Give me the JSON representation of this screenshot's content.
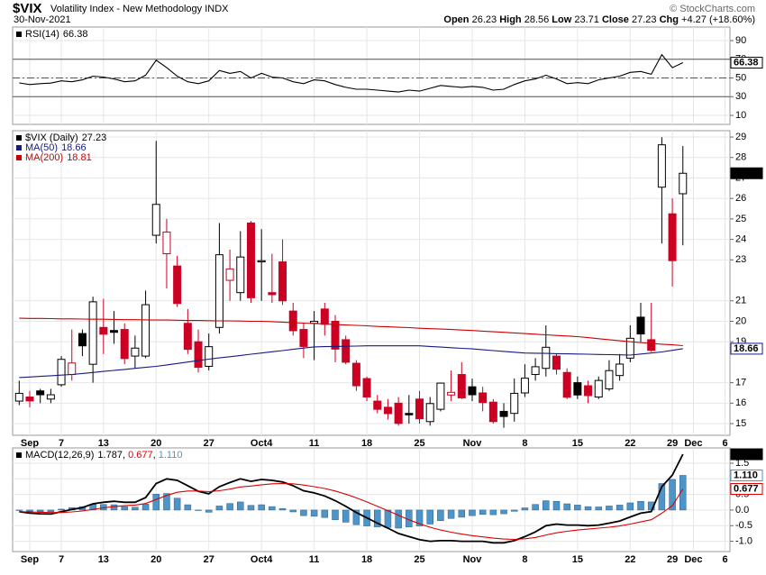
{
  "header": {
    "symbol": "$VIX",
    "name": "Volatility Index - New Methodology INDX",
    "date": "30-Nov-2021",
    "source": "© StockCharts.com",
    "quote_labels": [
      "Open",
      "High",
      "Low",
      "Close",
      "Chg"
    ],
    "change": "+4.27",
    "change_pct": "(+18.60%)"
  },
  "chart_data": [
    {
      "type": "line",
      "grid": true,
      "ylim": [
        0.4,
        104.5
      ],
      "yticks": [
        90,
        70,
        50,
        30,
        10
      ],
      "reference_lines": [
        {
          "value": 70,
          "style": "solid"
        },
        {
          "value": 50,
          "style": "dashdot"
        },
        {
          "value": 30,
          "style": "solid"
        }
      ],
      "legend": "stacked",
      "series": [
        {
          "name": "RSI(14)",
          "color": "#000000",
          "box": "outline",
          "values": [
            44.7,
            43,
            44,
            44.5,
            47,
            46,
            48,
            52,
            51,
            49,
            46,
            47,
            53,
            69,
            61,
            52,
            46,
            44,
            47,
            58,
            55,
            57,
            50,
            55,
            51,
            50,
            46,
            44,
            48,
            47,
            43,
            40,
            38,
            38,
            37,
            36,
            35,
            37,
            36,
            39,
            42,
            41,
            40,
            41,
            40,
            37,
            38,
            43,
            47,
            49,
            53,
            49,
            44,
            45,
            44,
            48,
            50,
            52,
            56,
            57,
            54,
            75,
            61,
            66.38,
            null,
            null,
            null,
            null
          ]
        }
      ]
    },
    {
      "type": "candlestick",
      "grid": true,
      "ylim": [
        14.43,
        29.31
      ],
      "yticks": [
        29,
        28,
        27,
        26,
        25,
        24,
        23,
        21,
        20,
        19,
        17,
        16,
        15
      ],
      "legend": "stacked",
      "categories": [
        null,
        "Sep",
        null,
        null,
        "7",
        null,
        null,
        null,
        "13",
        null,
        null,
        null,
        null,
        "20",
        null,
        null,
        null,
        null,
        "27",
        null,
        null,
        null,
        null,
        "Oct4",
        null,
        null,
        null,
        null,
        "11",
        null,
        null,
        null,
        null,
        "18",
        null,
        null,
        null,
        null,
        "25",
        null,
        null,
        null,
        null,
        "Nov",
        null,
        null,
        null,
        null,
        "8",
        null,
        null,
        null,
        null,
        "15",
        null,
        null,
        null,
        null,
        "22",
        null,
        null,
        null,
        "29",
        null,
        "Dec",
        null,
        null,
        "6"
      ],
      "series": [
        {
          "name": "$VIX (Daily)",
          "type": "candlestick",
          "color": "#000000",
          "up_color": "#000000",
          "down_color": "#cc0022",
          "box": "filled",
          "open": [
            16.1,
            16.3,
            16.6,
            16.2,
            16.9,
            17.4,
            19.4,
            17.9,
            19.7,
            19.55,
            19.6,
            18.3,
            18.3,
            24.2,
            23.3,
            22.7,
            19.9,
            19.0,
            17.8,
            19.7,
            22.0,
            21.4,
            24.8,
            22.9,
            21.4,
            22.9,
            20.5,
            19.6,
            19.9,
            20.6,
            20.0,
            19.1,
            17.95,
            17.2,
            16.1,
            15.8,
            16.0,
            15.5,
            16.2,
            15.1,
            15.7,
            16.4,
            17.4,
            16.8,
            16.5,
            16.05,
            15.6,
            15.5,
            16.5,
            17.4,
            17.7,
            18.3,
            17.5,
            17.0,
            16.85,
            16.3,
            16.7,
            17.35,
            18.2,
            20.2,
            19.1,
            26.55,
            25.25,
            26.23,
            null,
            null,
            null,
            null
          ],
          "high": [
            17.1,
            16.6,
            16.7,
            16.7,
            18.3,
            19.6,
            19.6,
            21.2,
            21.1,
            20.5,
            19.9,
            19.3,
            21.5,
            28.81,
            25.0,
            23.2,
            20.6,
            19.6,
            19.4,
            24.8,
            23.5,
            24.4,
            24.9,
            24.5,
            23.3,
            24.0,
            20.9,
            19.9,
            20.5,
            20.9,
            20.3,
            19.3,
            18.1,
            17.3,
            16.4,
            16.2,
            16.3,
            16.4,
            16.6,
            16.3,
            17.0,
            17.6,
            18.0,
            17.2,
            16.8,
            16.2,
            16.0,
            17.2,
            17.9,
            18.2,
            19.8,
            18.4,
            17.7,
            17.3,
            17.1,
            17.3,
            18.1,
            18.4,
            19.8,
            20.9,
            20.9,
            28.99,
            26.0,
            28.56,
            null,
            null,
            null,
            null
          ],
          "low": [
            15.9,
            15.8,
            16.0,
            16.0,
            16.8,
            17.1,
            18.3,
            17.0,
            18.4,
            18.9,
            17.9,
            17.7,
            18.2,
            23.8,
            21.6,
            20.7,
            18.4,
            17.5,
            17.6,
            19.4,
            21.0,
            21.0,
            20.9,
            21.0,
            20.9,
            20.8,
            19.3,
            18.2,
            18.1,
            19.3,
            18.0,
            17.9,
            16.6,
            16.1,
            15.5,
            15.2,
            14.9,
            15.0,
            15.0,
            14.9,
            15.6,
            16.1,
            16.2,
            16.1,
            15.6,
            15.0,
            14.8,
            15.1,
            16.3,
            17.1,
            17.3,
            17.4,
            16.2,
            16.2,
            16.0,
            16.2,
            16.6,
            17.1,
            18.0,
            19.0,
            18.5,
            23.8,
            21.7,
            23.71,
            null,
            null,
            null,
            null
          ],
          "close": [
            16.48,
            16.11,
            16.41,
            16.41,
            18.14,
            17.96,
            18.8,
            20.95,
            19.37,
            19.46,
            18.18,
            18.69,
            20.81,
            25.71,
            24.36,
            20.87,
            18.63,
            17.75,
            18.76,
            23.25,
            22.56,
            23.14,
            21.15,
            22.96,
            21.3,
            21.0,
            19.54,
            18.77,
            20.0,
            19.85,
            18.64,
            18.0,
            16.85,
            16.3,
            15.7,
            15.49,
            15.01,
            15.43,
            15.24,
            15.98,
            16.98,
            16.53,
            16.26,
            16.41,
            16.03,
            15.1,
            15.35,
            16.48,
            17.22,
            17.78,
            18.73,
            17.66,
            16.29,
            16.4,
            16.37,
            17.11,
            17.59,
            17.91,
            19.17,
            19.38,
            18.58,
            28.62,
            22.96,
            27.23,
            null,
            null,
            null,
            null
          ]
        },
        {
          "name": "MA(50)",
          "type": "line",
          "color": "#1a1a80",
          "box": "outline",
          "values": [
            17.25,
            17.28,
            17.31,
            17.34,
            17.37,
            17.4,
            17.45,
            17.5,
            17.55,
            17.6,
            17.65,
            17.7,
            17.75,
            17.8,
            17.87,
            17.94,
            18.01,
            18.08,
            18.15,
            18.21,
            18.27,
            18.33,
            18.39,
            18.45,
            18.51,
            18.57,
            18.63,
            18.69,
            18.75,
            18.76,
            18.77,
            18.78,
            18.79,
            18.8,
            18.8,
            18.8,
            18.8,
            18.8,
            18.8,
            18.77,
            18.74,
            18.71,
            18.68,
            18.65,
            18.61,
            18.57,
            18.53,
            18.49,
            18.45,
            18.44,
            18.43,
            18.42,
            18.41,
            18.4,
            18.39,
            18.38,
            18.37,
            18.36,
            18.35,
            18.4,
            18.45,
            18.5,
            18.58,
            18.66,
            null,
            null,
            null,
            null
          ]
        },
        {
          "name": "MA(200)",
          "type": "line",
          "color": "#cc0000",
          "values": [
            20.15,
            20.14,
            20.14,
            20.13,
            20.12,
            20.12,
            20.11,
            20.1,
            20.1,
            20.09,
            20.08,
            20.08,
            20.07,
            20.06,
            20.06,
            20.05,
            20.04,
            20.04,
            20.03,
            20.02,
            20.02,
            20.01,
            20.0,
            20.0,
            19.98,
            19.96,
            19.93,
            19.91,
            19.89,
            19.87,
            19.84,
            19.82,
            19.8,
            19.78,
            19.75,
            19.73,
            19.71,
            19.69,
            19.66,
            19.64,
            19.62,
            19.6,
            19.57,
            19.55,
            19.52,
            19.49,
            19.46,
            19.43,
            19.4,
            19.37,
            19.34,
            19.31,
            19.28,
            19.25,
            19.2,
            19.15,
            19.1,
            19.05,
            19.0,
            18.96,
            18.92,
            18.88,
            18.85,
            18.81,
            null,
            null,
            null,
            null
          ]
        }
      ]
    },
    {
      "type": "macd",
      "grid": true,
      "ylim": [
        -1.33,
        1.99
      ],
      "yticks": [
        1.5,
        {
          "value": 1,
          "label": "1.0"
        },
        0.5,
        {
          "value": 0,
          "label": "0.0"
        },
        -0.5,
        {
          "value": -1,
          "label": "-1.0"
        }
      ],
      "legend": "combined",
      "separator": ", ",
      "categories": [
        null,
        "Sep",
        null,
        null,
        "7",
        null,
        null,
        null,
        "13",
        null,
        null,
        null,
        null,
        "20",
        null,
        null,
        null,
        null,
        "27",
        null,
        null,
        null,
        null,
        "Oct4",
        null,
        null,
        null,
        null,
        "11",
        null,
        null,
        null,
        null,
        "18",
        null,
        null,
        null,
        null,
        "25",
        null,
        null,
        null,
        null,
        "Nov",
        null,
        null,
        null,
        null,
        "8",
        null,
        null,
        null,
        null,
        "15",
        null,
        null,
        null,
        null,
        "22",
        null,
        null,
        null,
        "29",
        null,
        "Dec",
        null,
        null,
        "6"
      ],
      "series": [
        {
          "name": "MACD(12,26,9)",
          "type": "line",
          "color": "#000000",
          "box": "filled",
          "values": [
            -0.05,
            -0.1,
            -0.12,
            -0.13,
            -0.05,
            0.02,
            0.08,
            0.2,
            0.25,
            0.28,
            0.25,
            0.25,
            0.4,
            0.85,
            1.0,
            0.95,
            0.78,
            0.6,
            0.52,
            0.75,
            0.88,
            1.0,
            0.92,
            0.98,
            0.95,
            0.9,
            0.78,
            0.62,
            0.55,
            0.45,
            0.3,
            0.12,
            -0.08,
            -0.25,
            -0.42,
            -0.58,
            -0.75,
            -0.85,
            -0.95,
            -1.0,
            -0.98,
            -0.98,
            -1.0,
            -1.0,
            -1.0,
            -1.05,
            -1.05,
            -0.98,
            -0.85,
            -0.7,
            -0.5,
            -0.45,
            -0.48,
            -0.48,
            -0.5,
            -0.48,
            -0.42,
            -0.35,
            -0.22,
            -0.1,
            -0.05,
            0.75,
            1.12,
            1.787,
            null,
            null,
            null,
            null
          ]
        },
        {
          "type": "line",
          "color": "#dd0000",
          "box": "outline",
          "values": [
            -0.05,
            -0.06,
            -0.07,
            -0.08,
            -0.08,
            -0.06,
            -0.03,
            0.02,
            0.07,
            0.11,
            0.14,
            0.16,
            0.21,
            0.34,
            0.47,
            0.57,
            0.61,
            0.61,
            0.59,
            0.62,
            0.67,
            0.74,
            0.77,
            0.81,
            0.84,
            0.85,
            0.84,
            0.8,
            0.75,
            0.69,
            0.61,
            0.51,
            0.39,
            0.26,
            0.12,
            -0.02,
            -0.17,
            -0.31,
            -0.44,
            -0.55,
            -0.64,
            -0.71,
            -0.77,
            -0.82,
            -0.86,
            -0.9,
            -0.93,
            -0.94,
            -0.92,
            -0.88,
            -0.8,
            -0.73,
            -0.68,
            -0.64,
            -0.61,
            -0.58,
            -0.55,
            -0.51,
            -0.45,
            -0.38,
            -0.31,
            -0.1,
            0.14,
            0.677,
            null,
            null,
            null,
            null
          ]
        },
        {
          "type": "bar",
          "color": "#4d94c9",
          "box": "outline",
          "last_label": "1.110",
          "values": [
            0.0,
            -0.04,
            -0.05,
            -0.05,
            0.03,
            0.08,
            0.11,
            0.18,
            0.18,
            0.17,
            0.11,
            0.09,
            0.19,
            0.51,
            0.53,
            0.38,
            0.17,
            -0.01,
            -0.07,
            0.13,
            0.21,
            0.26,
            0.15,
            0.17,
            0.11,
            0.05,
            -0.06,
            -0.18,
            -0.2,
            -0.24,
            -0.31,
            -0.39,
            -0.47,
            -0.51,
            -0.54,
            -0.56,
            -0.58,
            -0.54,
            -0.51,
            -0.45,
            -0.34,
            -0.27,
            -0.23,
            -0.18,
            -0.14,
            -0.15,
            -0.12,
            -0.04,
            0.07,
            0.18,
            0.3,
            0.28,
            0.2,
            0.16,
            0.11,
            0.1,
            0.13,
            0.16,
            0.23,
            0.28,
            0.26,
            0.85,
            0.98,
            1.11,
            null,
            null,
            null,
            null
          ]
        }
      ]
    }
  ]
}
